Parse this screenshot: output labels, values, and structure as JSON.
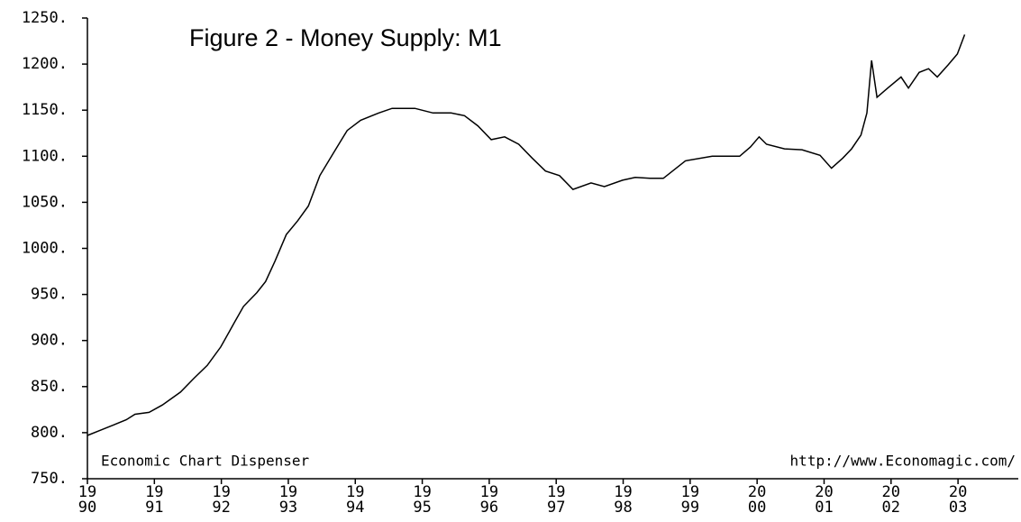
{
  "chart_data": {
    "type": "line",
    "title": "Figure 2 - Money Supply: M1",
    "annotations": [
      "Economic Chart Dispenser",
      "http://www.Economagic.com/"
    ],
    "color": "#000000",
    "x": [
      1990.0,
      1990.17,
      1990.38,
      1990.58,
      1990.71,
      1990.92,
      1991.12,
      1991.39,
      1991.59,
      1991.79,
      1991.99,
      1992.19,
      1992.33,
      1992.53,
      1992.66,
      1992.8,
      1992.97,
      1993.14,
      1993.3,
      1993.47,
      1993.67,
      1993.88,
      1994.08,
      1994.35,
      1994.55,
      1994.89,
      1995.16,
      1995.43,
      1995.63,
      1995.83,
      1996.03,
      1996.23,
      1996.44,
      1996.64,
      1996.84,
      1997.05,
      1997.25,
      1997.52,
      1997.72,
      1997.99,
      1998.18,
      1998.4,
      1998.6,
      1998.93,
      1999.33,
      1999.74,
      1999.9,
      2000.03,
      2000.14,
      2000.41,
      2000.67,
      2000.94,
      2001.11,
      2001.28,
      2001.41,
      2001.55,
      2001.64,
      2001.71,
      2001.79,
      2001.95,
      2002.15,
      2002.26,
      2002.42,
      2002.56,
      2002.69,
      2002.85,
      2002.99,
      2003.1
    ],
    "values": [
      797,
      802,
      808,
      814,
      820,
      822,
      830,
      844,
      859,
      873,
      893,
      919,
      937,
      952,
      964,
      986,
      1015,
      1030,
      1046,
      1079,
      1103,
      1128,
      1139,
      1147,
      1152,
      1152,
      1147,
      1147,
      1144,
      1133,
      1118,
      1121,
      1113,
      1098,
      1084,
      1079,
      1064,
      1071,
      1067,
      1074,
      1077,
      1076,
      1076,
      1095,
      1100,
      1100,
      1110,
      1121,
      1113,
      1108,
      1107,
      1101,
      1087,
      1098,
      1108,
      1123,
      1147,
      1204,
      1164,
      1174,
      1186,
      1174,
      1191,
      1195,
      1186,
      1199,
      1211,
      1232
    ],
    "xlim": [
      1990,
      2003.9
    ],
    "ylim": [
      750,
      1250
    ],
    "xticks": [
      {
        "value": 1990,
        "label": "19\n90"
      },
      {
        "value": 1991,
        "label": "19\n91"
      },
      {
        "value": 1992,
        "label": "19\n92"
      },
      {
        "value": 1993,
        "label": "19\n93"
      },
      {
        "value": 1994,
        "label": "19\n94"
      },
      {
        "value": 1995,
        "label": "19\n95"
      },
      {
        "value": 1996,
        "label": "19\n96"
      },
      {
        "value": 1997,
        "label": "19\n97"
      },
      {
        "value": 1998,
        "label": "19\n98"
      },
      {
        "value": 1999,
        "label": "19\n99"
      },
      {
        "value": 2000,
        "label": "20\n00"
      },
      {
        "value": 2001,
        "label": "20\n01"
      },
      {
        "value": 2002,
        "label": "20\n02"
      },
      {
        "value": 2003,
        "label": "20\n03"
      }
    ],
    "yticks": [
      {
        "value": 750,
        "label": "750."
      },
      {
        "value": 800,
        "label": "800."
      },
      {
        "value": 850,
        "label": "850."
      },
      {
        "value": 900,
        "label": "900."
      },
      {
        "value": 950,
        "label": "950."
      },
      {
        "value": 1000,
        "label": "1000."
      },
      {
        "value": 1050,
        "label": "1050."
      },
      {
        "value": 1100,
        "label": "1100."
      },
      {
        "value": 1150,
        "label": "1150."
      },
      {
        "value": 1200,
        "label": "1200."
      },
      {
        "value": 1250,
        "label": "1250."
      }
    ],
    "grid": false
  }
}
